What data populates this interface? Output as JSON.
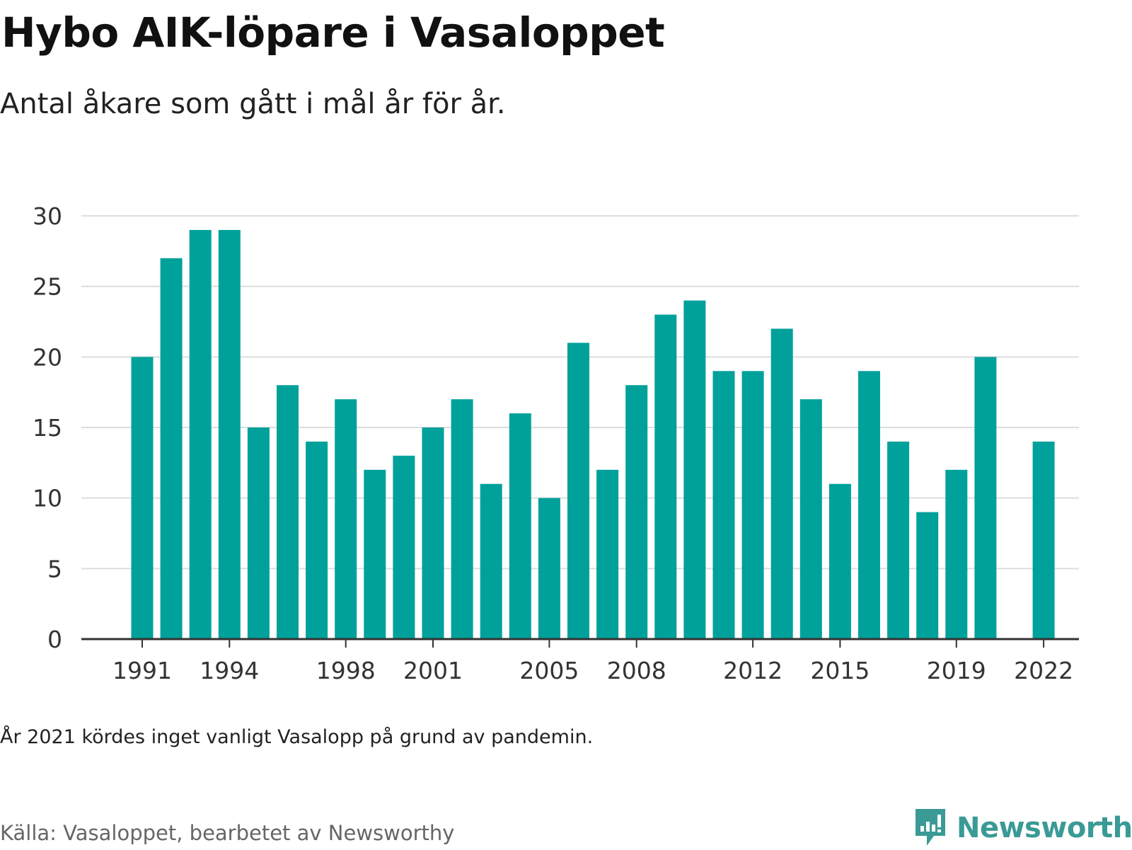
{
  "title": "Hybo AIK-löpare i Vasaloppet",
  "subtitle": "Antal åkare som gått i mål år för år.",
  "note": "År 2021 kördes inget vanligt Vasalopp på grund av pandemin.",
  "source": "Källa: Vasaloppet, bearbetet av Newsworthy",
  "brand": "Newsworthy",
  "colors": {
    "bar": "#00a19a",
    "grid": "#dddddd",
    "axis": "#333333",
    "brand": "#3a9a95"
  },
  "chart_data": {
    "type": "bar",
    "categories": [
      1991,
      1992,
      1993,
      1994,
      1995,
      1996,
      1997,
      1998,
      1999,
      2000,
      2001,
      2002,
      2003,
      2004,
      2005,
      2006,
      2007,
      2008,
      2009,
      2010,
      2011,
      2012,
      2013,
      2014,
      2015,
      2016,
      2017,
      2018,
      2019,
      2020,
      2021,
      2022
    ],
    "values": [
      20,
      27,
      29,
      29,
      15,
      18,
      14,
      17,
      12,
      13,
      15,
      17,
      11,
      16,
      10,
      21,
      12,
      18,
      23,
      24,
      19,
      19,
      22,
      17,
      11,
      19,
      14,
      9,
      12,
      20,
      null,
      14
    ],
    "xticks": [
      "1991",
      "1994",
      "1998",
      "2001",
      "2005",
      "2008",
      "2012",
      "2015",
      "2019",
      "2022"
    ],
    "yticks": [
      0,
      5,
      10,
      15,
      20,
      25,
      30
    ],
    "ylim": [
      0,
      30
    ],
    "grid": true,
    "legend": "none"
  }
}
